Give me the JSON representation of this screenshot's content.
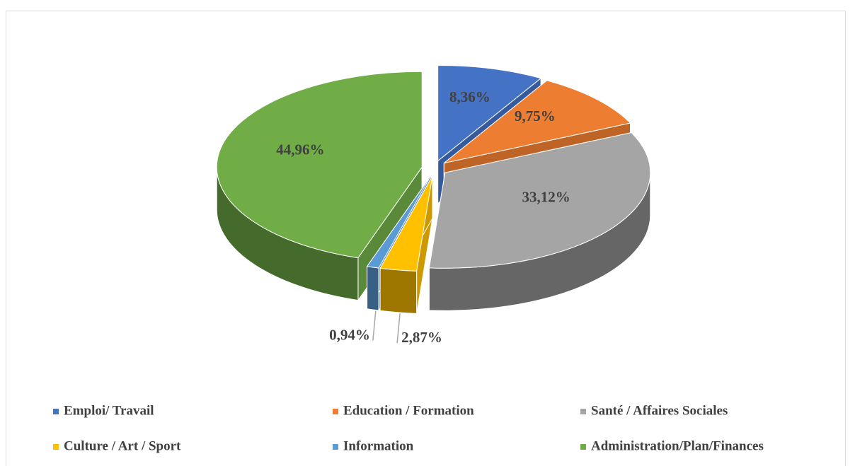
{
  "chart_data": {
    "type": "pie",
    "categories": [
      "Emploi/ Travail",
      "Education / Formation",
      "Santé / Affaires Sociales",
      "Culture / Art / Sport",
      "Information",
      "Administration/Plan/Finances"
    ],
    "values": [
      8.36,
      9.75,
      33.12,
      2.87,
      0.94,
      44.96
    ],
    "value_labels": [
      "8,36%",
      "9,75%",
      "33,12%",
      "2,87%",
      "0,94%",
      "44,96%"
    ],
    "colors": [
      "#4472c4",
      "#ed7d31",
      "#a5a5a5",
      "#ffc000",
      "#5b9bd5",
      "#70ad47"
    ],
    "legend": "bottom"
  }
}
